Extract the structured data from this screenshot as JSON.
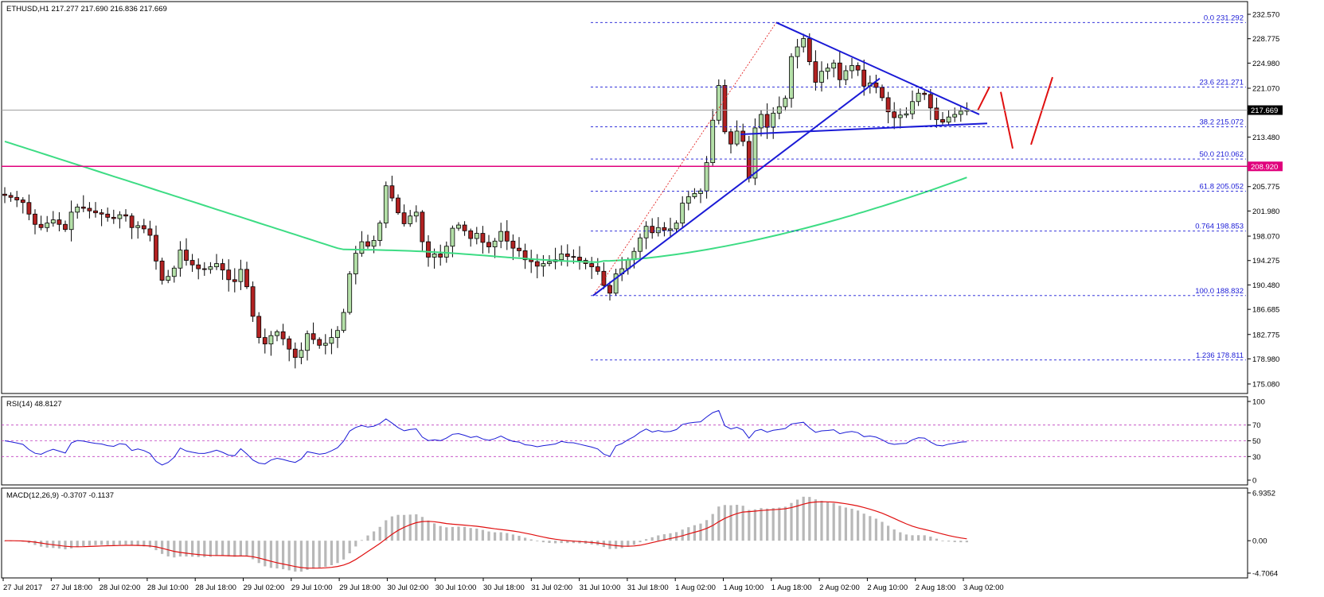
{
  "title": {
    "main": "ETHUSD,H1  217.277 217.690 216.836 217.669"
  },
  "colors": {
    "bull_candle": "#b4e0a8",
    "bear_candle": "#b22222",
    "wick": "#000000",
    "ma": "#3ddc84",
    "trendline": "#1a1ad6",
    "resistance": "#e0007c",
    "fib": "#1a1ad6",
    "arrow": "#e01010",
    "rsi_line": "#1a1ad6",
    "rsi_level": "#c040c0",
    "macd_signal": "#e01010",
    "macd_hist": "#b8b8b8",
    "price_line": "#a0a0a0"
  },
  "chart_data": [
    {
      "type": "candlestick",
      "title": "ETHUSD,H1",
      "ohlc_last": {
        "open": 217.277,
        "high": 217.69,
        "low": 216.836,
        "close": 217.669
      },
      "current_price": "217.669",
      "x_tick_labels": [
        "27 Jul 2017",
        "27 Jul 18:00",
        "28 Jul 02:00",
        "28 Jul 10:00",
        "28 Jul 18:00",
        "29 Jul 02:00",
        "29 Jul 10:00",
        "29 Jul 18:00",
        "30 Jul 02:00",
        "30 Jul 10:00",
        "30 Jul 18:00",
        "31 Jul 02:00",
        "31 Jul 10:00",
        "31 Jul 18:00",
        "1 Aug 02:00",
        "1 Aug 10:00",
        "1 Aug 18:00",
        "2 Aug 02:00",
        "2 Aug 10:00",
        "2 Aug 18:00",
        "3 Aug 02:00"
      ],
      "y_tick_labels": [
        "232.570",
        "228.775",
        "224.980",
        "221.070",
        "217.275",
        "213.480",
        "209.570",
        "205.775",
        "201.980",
        "198.070",
        "194.275",
        "190.480",
        "186.685",
        "182.775",
        "178.980",
        "175.080"
      ],
      "ylim": [
        175.08,
        232.57
      ],
      "grid": false,
      "horizontal_line": {
        "value": 208.92,
        "label": "208.920"
      },
      "fibonacci": [
        {
          "label": "0.0  231.292",
          "value": 231.292
        },
        {
          "label": "23.6  221.271",
          "value": 221.271
        },
        {
          "label": "38.2  215.072",
          "value": 215.072
        },
        {
          "label": "50.0  210.062",
          "value": 210.062
        },
        {
          "label": "61.8  205.052",
          "value": 205.052
        },
        {
          "label": "0.764  198.853",
          "value": 198.853
        },
        {
          "label": "100.0  188.832",
          "value": 188.832
        },
        {
          "label": "1.236  178.811",
          "value": 178.811
        }
      ],
      "candles_close": [
        204.4,
        204.1,
        203.7,
        203.3,
        201.5,
        199.9,
        199.4,
        200.1,
        200.6,
        199.9,
        199.1,
        201.8,
        202.6,
        202.4,
        202.0,
        201.7,
        201.5,
        201.0,
        200.8,
        201.4,
        201.2,
        199.4,
        199.7,
        199.2,
        198.2,
        194.2,
        191.2,
        191.8,
        193.1,
        195.9,
        194.3,
        193.6,
        193.0,
        192.9,
        193.3,
        193.8,
        192.8,
        191.3,
        191.0,
        192.9,
        190.2,
        185.6,
        182.3,
        181.3,
        182.6,
        183.2,
        182.1,
        180.5,
        179.2,
        180.3,
        182.9,
        182.0,
        181.1,
        181.4,
        182.3,
        183.4,
        186.2,
        192.2,
        195.4,
        197.2,
        196.5,
        197.4,
        200.1,
        205.9,
        204.0,
        201.7,
        200.0,
        201.2,
        201.8,
        197.2,
        194.8,
        195.3,
        194.8,
        196.5,
        199.3,
        199.8,
        198.9,
        197.7,
        198.5,
        197.1,
        196.4,
        197.3,
        198.8,
        197.3,
        196.2,
        195.8,
        194.4,
        194.1,
        193.4,
        193.8,
        194.1,
        194.4,
        195.3,
        194.9,
        194.8,
        194.3,
        193.8,
        193.3,
        192.6,
        190.4,
        189.2,
        192.2,
        193.0,
        194.4,
        195.7,
        197.8,
        199.6,
        198.6,
        199.4,
        199.0,
        199.2,
        200.1,
        203.2,
        204.2,
        204.7,
        205.1,
        209.5,
        216.1,
        221.5,
        214.3,
        212.4,
        214.4,
        212.8,
        207.1,
        214.9,
        217.0,
        215.0,
        217.2,
        218.2,
        219.5,
        226.0,
        227.5,
        228.8,
        225.2,
        222.0,
        223.7,
        224.2,
        225.0,
        222.4,
        223.8,
        224.6,
        223.9,
        221.4,
        221.9,
        221.2,
        219.6,
        217.4,
        216.5,
        216.9,
        217.1,
        219.0,
        220.3,
        220.1,
        218.0,
        216.2,
        215.8,
        216.6,
        217.0,
        217.5,
        217.669
      ]
    },
    {
      "type": "line",
      "title": "RSI(14) 48.8127",
      "series": [
        {
          "name": "RSI(14)"
        }
      ],
      "value_text": "48.8127",
      "ylim": [
        0,
        100
      ],
      "levels": [
        30,
        50,
        70
      ],
      "y_tick_labels": [
        "100",
        "70",
        "50",
        "30",
        "0"
      ]
    },
    {
      "type": "bar",
      "title": "MACD(12,26,9) -0.3707 -0.1137",
      "series": [
        {
          "name": "MACD(12,26,9)"
        }
      ],
      "values_text": "-0.3707 -0.1137",
      "ylim": [
        -4.7064,
        6.9352
      ],
      "y_tick_labels": [
        "6.9352",
        "0.00",
        "-4.7064"
      ]
    }
  ]
}
